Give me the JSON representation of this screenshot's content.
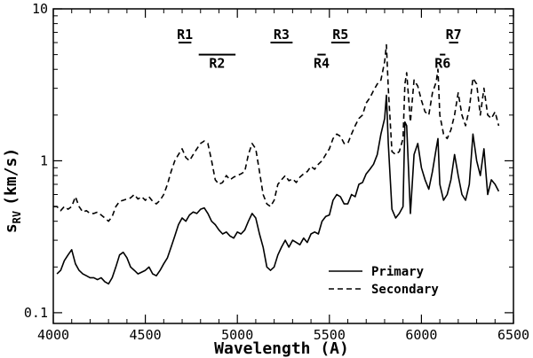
{
  "chart_data": {
    "type": "line",
    "xlabel": "Wavelength (A)",
    "ylabel_main": "s",
    "ylabel_sub": "RV",
    "ylabel_units": "(km/s)",
    "xlim": [
      4000,
      6500
    ],
    "ylim": [
      0.085,
      10
    ],
    "yscale": "log",
    "grid": false,
    "legend_position": "bottom-right",
    "x_ticks": [
      {
        "value": 4000,
        "label": "4000"
      },
      {
        "value": 4500,
        "label": "4500"
      },
      {
        "value": 5000,
        "label": "5000"
      },
      {
        "value": 5500,
        "label": "5500"
      },
      {
        "value": 6000,
        "label": "6000"
      },
      {
        "value": 6500,
        "label": "6500"
      }
    ],
    "y_ticks": [
      {
        "value": 0.1,
        "label": "0.1"
      },
      {
        "value": 1,
        "label": "1"
      },
      {
        "value": 10,
        "label": "10"
      }
    ],
    "series": [
      {
        "name": "Primary",
        "style": "solid",
        "points": [
          [
            4020,
            0.18
          ],
          [
            4040,
            0.19
          ],
          [
            4060,
            0.22
          ],
          [
            4080,
            0.24
          ],
          [
            4100,
            0.26
          ],
          [
            4120,
            0.21
          ],
          [
            4140,
            0.19
          ],
          [
            4160,
            0.18
          ],
          [
            4180,
            0.175
          ],
          [
            4200,
            0.17
          ],
          [
            4220,
            0.17
          ],
          [
            4240,
            0.165
          ],
          [
            4260,
            0.17
          ],
          [
            4280,
            0.16
          ],
          [
            4300,
            0.155
          ],
          [
            4320,
            0.17
          ],
          [
            4340,
            0.2
          ],
          [
            4360,
            0.24
          ],
          [
            4380,
            0.25
          ],
          [
            4400,
            0.23
          ],
          [
            4420,
            0.2
          ],
          [
            4440,
            0.19
          ],
          [
            4460,
            0.18
          ],
          [
            4480,
            0.185
          ],
          [
            4500,
            0.19
          ],
          [
            4520,
            0.2
          ],
          [
            4540,
            0.18
          ],
          [
            4560,
            0.175
          ],
          [
            4580,
            0.19
          ],
          [
            4600,
            0.21
          ],
          [
            4620,
            0.23
          ],
          [
            4640,
            0.27
          ],
          [
            4660,
            0.32
          ],
          [
            4680,
            0.38
          ],
          [
            4700,
            0.42
          ],
          [
            4720,
            0.4
          ],
          [
            4740,
            0.44
          ],
          [
            4760,
            0.46
          ],
          [
            4780,
            0.45
          ],
          [
            4800,
            0.48
          ],
          [
            4820,
            0.49
          ],
          [
            4840,
            0.45
          ],
          [
            4860,
            0.4
          ],
          [
            4880,
            0.38
          ],
          [
            4900,
            0.35
          ],
          [
            4920,
            0.33
          ],
          [
            4940,
            0.34
          ],
          [
            4960,
            0.32
          ],
          [
            4980,
            0.31
          ],
          [
            5000,
            0.34
          ],
          [
            5020,
            0.33
          ],
          [
            5040,
            0.35
          ],
          [
            5060,
            0.4
          ],
          [
            5080,
            0.45
          ],
          [
            5100,
            0.42
          ],
          [
            5120,
            0.33
          ],
          [
            5140,
            0.27
          ],
          [
            5160,
            0.2
          ],
          [
            5180,
            0.19
          ],
          [
            5200,
            0.2
          ],
          [
            5220,
            0.24
          ],
          [
            5240,
            0.27
          ],
          [
            5260,
            0.3
          ],
          [
            5280,
            0.27
          ],
          [
            5300,
            0.3
          ],
          [
            5320,
            0.29
          ],
          [
            5340,
            0.28
          ],
          [
            5360,
            0.31
          ],
          [
            5380,
            0.29
          ],
          [
            5400,
            0.33
          ],
          [
            5420,
            0.34
          ],
          [
            5440,
            0.33
          ],
          [
            5460,
            0.4
          ],
          [
            5480,
            0.43
          ],
          [
            5500,
            0.44
          ],
          [
            5520,
            0.55
          ],
          [
            5540,
            0.6
          ],
          [
            5560,
            0.58
          ],
          [
            5580,
            0.52
          ],
          [
            5600,
            0.52
          ],
          [
            5620,
            0.6
          ],
          [
            5640,
            0.58
          ],
          [
            5660,
            0.7
          ],
          [
            5680,
            0.72
          ],
          [
            5700,
            0.82
          ],
          [
            5720,
            0.88
          ],
          [
            5740,
            0.95
          ],
          [
            5760,
            1.1
          ],
          [
            5780,
            1.5
          ],
          [
            5800,
            1.9
          ],
          [
            5810,
            2.7
          ],
          [
            5820,
            1.3
          ],
          [
            5840,
            0.48
          ],
          [
            5860,
            0.42
          ],
          [
            5880,
            0.45
          ],
          [
            5900,
            0.5
          ],
          [
            5910,
            1.8
          ],
          [
            5920,
            1.7
          ],
          [
            5940,
            0.45
          ],
          [
            5960,
            1.1
          ],
          [
            5980,
            1.3
          ],
          [
            6000,
            0.9
          ],
          [
            6020,
            0.75
          ],
          [
            6040,
            0.65
          ],
          [
            6060,
            0.85
          ],
          [
            6080,
            1.2
          ],
          [
            6090,
            1.4
          ],
          [
            6100,
            0.7
          ],
          [
            6120,
            0.55
          ],
          [
            6140,
            0.6
          ],
          [
            6160,
            0.75
          ],
          [
            6180,
            1.1
          ],
          [
            6200,
            0.8
          ],
          [
            6220,
            0.6
          ],
          [
            6240,
            0.55
          ],
          [
            6260,
            0.7
          ],
          [
            6280,
            1.5
          ],
          [
            6300,
            1.0
          ],
          [
            6320,
            0.8
          ],
          [
            6340,
            1.2
          ],
          [
            6360,
            0.6
          ],
          [
            6380,
            0.75
          ],
          [
            6400,
            0.7
          ],
          [
            6420,
            0.63
          ]
        ]
      },
      {
        "name": "Secondary",
        "style": "dashed",
        "points": [
          [
            4000,
            0.5
          ],
          [
            4020,
            0.5
          ],
          [
            4040,
            0.47
          ],
          [
            4060,
            0.5
          ],
          [
            4080,
            0.48
          ],
          [
            4100,
            0.5
          ],
          [
            4120,
            0.58
          ],
          [
            4140,
            0.5
          ],
          [
            4160,
            0.46
          ],
          [
            4180,
            0.47
          ],
          [
            4200,
            0.45
          ],
          [
            4220,
            0.45
          ],
          [
            4240,
            0.46
          ],
          [
            4260,
            0.44
          ],
          [
            4280,
            0.42
          ],
          [
            4300,
            0.4
          ],
          [
            4320,
            0.43
          ],
          [
            4340,
            0.5
          ],
          [
            4360,
            0.54
          ],
          [
            4380,
            0.55
          ],
          [
            4400,
            0.56
          ],
          [
            4420,
            0.57
          ],
          [
            4440,
            0.6
          ],
          [
            4460,
            0.56
          ],
          [
            4480,
            0.58
          ],
          [
            4500,
            0.55
          ],
          [
            4520,
            0.58
          ],
          [
            4540,
            0.54
          ],
          [
            4560,
            0.52
          ],
          [
            4580,
            0.55
          ],
          [
            4600,
            0.6
          ],
          [
            4620,
            0.7
          ],
          [
            4640,
            0.85
          ],
          [
            4660,
            1.0
          ],
          [
            4680,
            1.1
          ],
          [
            4700,
            1.2
          ],
          [
            4720,
            1.05
          ],
          [
            4740,
            1.0
          ],
          [
            4760,
            1.1
          ],
          [
            4780,
            1.2
          ],
          [
            4800,
            1.3
          ],
          [
            4820,
            1.35
          ],
          [
            4840,
            1.3
          ],
          [
            4860,
            1.0
          ],
          [
            4880,
            0.75
          ],
          [
            4900,
            0.7
          ],
          [
            4920,
            0.72
          ],
          [
            4940,
            0.8
          ],
          [
            4960,
            0.75
          ],
          [
            4980,
            0.78
          ],
          [
            5000,
            0.8
          ],
          [
            5020,
            0.82
          ],
          [
            5040,
            0.85
          ],
          [
            5060,
            1.1
          ],
          [
            5080,
            1.3
          ],
          [
            5100,
            1.2
          ],
          [
            5120,
            0.85
          ],
          [
            5140,
            0.6
          ],
          [
            5160,
            0.52
          ],
          [
            5180,
            0.5
          ],
          [
            5200,
            0.55
          ],
          [
            5220,
            0.7
          ],
          [
            5240,
            0.75
          ],
          [
            5260,
            0.8
          ],
          [
            5280,
            0.74
          ],
          [
            5300,
            0.76
          ],
          [
            5320,
            0.72
          ],
          [
            5340,
            0.78
          ],
          [
            5360,
            0.82
          ],
          [
            5380,
            0.85
          ],
          [
            5400,
            0.92
          ],
          [
            5420,
            0.88
          ],
          [
            5440,
            0.95
          ],
          [
            5460,
            1.0
          ],
          [
            5480,
            1.1
          ],
          [
            5500,
            1.2
          ],
          [
            5520,
            1.4
          ],
          [
            5540,
            1.5
          ],
          [
            5560,
            1.45
          ],
          [
            5580,
            1.3
          ],
          [
            5600,
            1.3
          ],
          [
            5620,
            1.5
          ],
          [
            5640,
            1.7
          ],
          [
            5660,
            1.9
          ],
          [
            5680,
            2.0
          ],
          [
            5700,
            2.4
          ],
          [
            5720,
            2.6
          ],
          [
            5740,
            2.9
          ],
          [
            5760,
            3.2
          ],
          [
            5780,
            3.4
          ],
          [
            5800,
            4.5
          ],
          [
            5810,
            5.8
          ],
          [
            5820,
            3.0
          ],
          [
            5840,
            1.15
          ],
          [
            5860,
            1.1
          ],
          [
            5880,
            1.15
          ],
          [
            5900,
            1.4
          ],
          [
            5910,
            3.2
          ],
          [
            5920,
            3.8
          ],
          [
            5940,
            1.8
          ],
          [
            5960,
            3.4
          ],
          [
            5980,
            3.1
          ],
          [
            6000,
            2.5
          ],
          [
            6020,
            2.1
          ],
          [
            6040,
            2.0
          ],
          [
            6060,
            2.8
          ],
          [
            6080,
            3.3
          ],
          [
            6090,
            4.0
          ],
          [
            6100,
            2.0
          ],
          [
            6120,
            1.5
          ],
          [
            6140,
            1.4
          ],
          [
            6160,
            1.6
          ],
          [
            6180,
            2.0
          ],
          [
            6200,
            2.8
          ],
          [
            6220,
            2.0
          ],
          [
            6240,
            1.7
          ],
          [
            6260,
            2.2
          ],
          [
            6280,
            3.5
          ],
          [
            6300,
            3.2
          ],
          [
            6320,
            2.0
          ],
          [
            6340,
            3.0
          ],
          [
            6360,
            2.0
          ],
          [
            6380,
            1.9
          ],
          [
            6400,
            2.1
          ],
          [
            6420,
            1.7
          ]
        ]
      }
    ],
    "regions": [
      {
        "label": "R1",
        "x1": 4680,
        "x2": 4750,
        "y": 6.0,
        "label_pos": "above"
      },
      {
        "label": "R2",
        "x1": 4790,
        "x2": 4990,
        "y": 5.0,
        "label_pos": "below"
      },
      {
        "label": "R3",
        "x1": 5180,
        "x2": 5300,
        "y": 6.0,
        "label_pos": "above"
      },
      {
        "label": "R4",
        "x1": 5435,
        "x2": 5480,
        "y": 5.0,
        "label_pos": "below"
      },
      {
        "label": "R5",
        "x1": 5510,
        "x2": 5610,
        "y": 6.0,
        "label_pos": "above"
      },
      {
        "label": "R6",
        "x1": 6100,
        "x2": 6130,
        "y": 5.0,
        "label_pos": "below"
      },
      {
        "label": "R7",
        "x1": 6150,
        "x2": 6200,
        "y": 6.0,
        "label_pos": "above"
      }
    ]
  }
}
